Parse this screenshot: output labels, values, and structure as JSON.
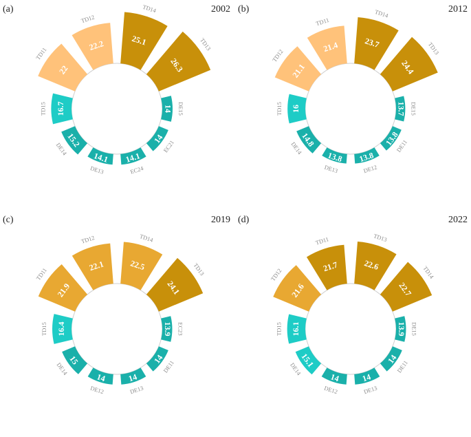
{
  "chart_data": [
    {
      "type": "radial-bar",
      "panel_label": "(a)",
      "year": "2002",
      "segments": [
        {
          "label": "TD12",
          "value": 22.2,
          "color": "#FFC27A"
        },
        {
          "label": "TD14",
          "value": 25.1,
          "color": "#C8900A"
        },
        {
          "label": "TD13",
          "value": 26.3,
          "color": "#C8900A"
        },
        {
          "label": "DE15",
          "value": 14,
          "color": "#1AB0AA"
        },
        {
          "label": "EC21",
          "value": 14,
          "color": "#1AB0AA"
        },
        {
          "label": "EC24",
          "value": 14.1,
          "color": "#1AB0AA"
        },
        {
          "label": "DE13",
          "value": 14.1,
          "color": "#1AB0AA"
        },
        {
          "label": "DE14",
          "value": 15.2,
          "color": "#1AB0AA"
        },
        {
          "label": "TD15",
          "value": 16.7,
          "color": "#1ECCC6"
        },
        {
          "label": "TD11",
          "value": 22,
          "color": "#FFC27A"
        }
      ]
    },
    {
      "type": "radial-bar",
      "panel_label": "(b)",
      "year": "2012",
      "segments": [
        {
          "label": "TD11",
          "value": 21.4,
          "color": "#FFC27A"
        },
        {
          "label": "TD14",
          "value": 23.7,
          "color": "#C8900A"
        },
        {
          "label": "TD13",
          "value": 24.4,
          "color": "#C8900A"
        },
        {
          "label": "DE15",
          "value": 13.7,
          "color": "#1AB0AA"
        },
        {
          "label": "DE11",
          "value": 13.8,
          "color": "#1AB0AA"
        },
        {
          "label": "DE12",
          "value": 13.8,
          "color": "#1AB0AA"
        },
        {
          "label": "DE13",
          "value": 13.8,
          "color": "#1AB0AA"
        },
        {
          "label": "DE14",
          "value": 14.8,
          "color": "#1AB0AA"
        },
        {
          "label": "TD15",
          "value": 16,
          "color": "#1ECCC6"
        },
        {
          "label": "TD12",
          "value": 21.1,
          "color": "#FFC27A"
        }
      ]
    },
    {
      "type": "radial-bar",
      "panel_label": "(c)",
      "year": "2019",
      "segments": [
        {
          "label": "TD12",
          "value": 22.1,
          "color": "#E8A832"
        },
        {
          "label": "TD14",
          "value": 22.5,
          "color": "#E8A832"
        },
        {
          "label": "TD13",
          "value": 24.1,
          "color": "#C8900A"
        },
        {
          "label": "EC23",
          "value": 13.9,
          "color": "#1AB0AA"
        },
        {
          "label": "DE11",
          "value": 14,
          "color": "#1AB0AA"
        },
        {
          "label": "DE13",
          "value": 14,
          "color": "#1AB0AA"
        },
        {
          "label": "DE12",
          "value": 14,
          "color": "#1AB0AA"
        },
        {
          "label": "DE14",
          "value": 15,
          "color": "#1AB0AA"
        },
        {
          "label": "TD15",
          "value": 16.4,
          "color": "#1ECCC6"
        },
        {
          "label": "TD11",
          "value": 21.9,
          "color": "#E8A832"
        }
      ]
    },
    {
      "type": "radial-bar",
      "panel_label": "(d)",
      "year": "2022",
      "segments": [
        {
          "label": "TD11",
          "value": 21.7,
          "color": "#C8900A"
        },
        {
          "label": "TD13",
          "value": 22.6,
          "color": "#C8900A"
        },
        {
          "label": "TD14",
          "value": 22.7,
          "color": "#C8900A"
        },
        {
          "label": "DE15",
          "value": 13.9,
          "color": "#1AB0AA"
        },
        {
          "label": "DE11",
          "value": 14,
          "color": "#1AB0AA"
        },
        {
          "label": "DE13",
          "value": 14,
          "color": "#1AB0AA"
        },
        {
          "label": "DE12",
          "value": 14,
          "color": "#1AB0AA"
        },
        {
          "label": "DE14",
          "value": 15.1,
          "color": "#1ECCC6"
        },
        {
          "label": "TD15",
          "value": 16.1,
          "color": "#1ECCC6"
        },
        {
          "label": "TD12",
          "value": 21.6,
          "color": "#E8A832"
        }
      ]
    }
  ]
}
